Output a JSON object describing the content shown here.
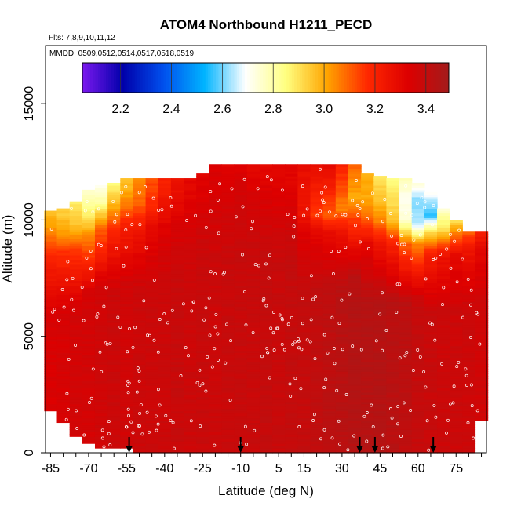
{
  "chart_data": {
    "type": "heatmap",
    "title": "ATOM4 Northbound H1211_PECD",
    "flights_label": "Flts: 7,8,9,10,11,12",
    "dates_label": "MMDD: 0509,0512,0514,0517,0518,0519",
    "xlabel": "Latitude (deg N)",
    "ylabel": "Altitude (m)",
    "xlim": [
      -87,
      87
    ],
    "ylim": [
      0,
      17500
    ],
    "x_ticks": [
      "-85",
      "-70",
      "-55",
      "-40",
      "-25",
      "-10",
      "5",
      "15",
      "30",
      "45",
      "60",
      "75"
    ],
    "x_tick_values": [
      -85,
      -70,
      -55,
      -40,
      -25,
      -10,
      5,
      15,
      30,
      45,
      60,
      75
    ],
    "y_ticks": [
      "0",
      "5000",
      "10000",
      "15000"
    ],
    "y_tick_values": [
      0,
      5000,
      10000,
      15000
    ],
    "colorbar": {
      "range": [
        2.05,
        3.49
      ],
      "tick_labels": [
        "2.2",
        "2.4",
        "2.6",
        "2.8",
        "3.0",
        "3.2",
        "3.4"
      ],
      "tick_values": [
        2.2,
        2.4,
        2.6,
        2.8,
        3.0,
        3.2,
        3.4
      ],
      "colors": [
        "#7b18ee",
        "#0000aa",
        "#0050ee",
        "#00b4ff",
        "#ffffff",
        "#ffff80",
        "#ffa500",
        "#ff2800",
        "#dd0000",
        "#a31b1b"
      ]
    },
    "arrow_latitudes": [
      -54,
      -10,
      37,
      43,
      66
    ],
    "profiles": [
      {
        "lat": -85,
        "top": 10400,
        "upper": [
          [
            10400,
            2.95
          ],
          [
            9500,
            3.05
          ],
          [
            8400,
            3.2
          ]
        ],
        "base": 3.34
      },
      {
        "lat": -80,
        "top": 10500,
        "upper": [
          [
            10500,
            2.92
          ],
          [
            9500,
            3.02
          ],
          [
            8500,
            3.18
          ]
        ],
        "base": 3.35
      },
      {
        "lat": -75,
        "top": 10800,
        "upper": [
          [
            10800,
            2.88
          ],
          [
            9800,
            2.96
          ],
          [
            8700,
            3.15
          ]
        ],
        "base": 3.36
      },
      {
        "lat": -70,
        "top": 11300,
        "upper": [
          [
            11300,
            2.75
          ],
          [
            10400,
            2.85
          ],
          [
            9300,
            3.05
          ]
        ],
        "base": 3.36
      },
      {
        "lat": -65,
        "top": 11500,
        "upper": [
          [
            11500,
            2.72
          ],
          [
            10800,
            2.8
          ],
          [
            9600,
            3.1
          ]
        ],
        "base": 3.37
      },
      {
        "lat": -60,
        "top": 11600,
        "upper": [
          [
            11600,
            2.85
          ],
          [
            10600,
            3.0
          ],
          [
            9400,
            3.2
          ]
        ],
        "base": 3.38
      },
      {
        "lat": -55,
        "top": 11800,
        "upper": [
          [
            11800,
            2.95
          ],
          [
            10800,
            3.05
          ],
          [
            9700,
            3.22
          ]
        ],
        "base": 3.37
      },
      {
        "lat": -50,
        "top": 11800,
        "upper": [
          [
            11800,
            3.05
          ],
          [
            10700,
            3.1
          ],
          [
            9600,
            3.25
          ]
        ],
        "base": 3.38
      },
      {
        "lat": -45,
        "top": 11800,
        "upper": [
          [
            11800,
            3.12
          ],
          [
            10600,
            3.18
          ],
          [
            9600,
            3.3
          ]
        ],
        "base": 3.38
      },
      {
        "lat": -40,
        "top": 11800,
        "upper": [
          [
            11800,
            3.2
          ],
          [
            10600,
            3.25
          ],
          [
            9600,
            3.33
          ]
        ],
        "base": 3.38
      },
      {
        "lat": -35,
        "top": 11800,
        "upper": [
          [
            11800,
            3.25
          ],
          [
            10600,
            3.3
          ],
          [
            9600,
            3.35
          ]
        ],
        "base": 3.39
      },
      {
        "lat": -30,
        "top": 11800,
        "upper": [
          [
            11800,
            3.3
          ],
          [
            10600,
            3.32
          ],
          [
            9600,
            3.36
          ]
        ],
        "base": 3.38
      },
      {
        "lat": -25,
        "top": 12000,
        "upper": [
          [
            12000,
            3.32
          ],
          [
            10800,
            3.34
          ]
        ],
        "base": 3.39
      },
      {
        "lat": -20,
        "top": 12400,
        "upper": [
          [
            12400,
            3.33
          ],
          [
            11000,
            3.35
          ]
        ],
        "base": 3.38
      },
      {
        "lat": -15,
        "top": 12400,
        "upper": [
          [
            12400,
            3.32
          ],
          [
            11000,
            3.35
          ]
        ],
        "base": 3.39
      },
      {
        "lat": -10,
        "top": 12400,
        "upper": [
          [
            12400,
            3.32
          ],
          [
            11000,
            3.36
          ]
        ],
        "base": 3.39
      },
      {
        "lat": -5,
        "top": 12400,
        "upper": [
          [
            12400,
            3.3
          ],
          [
            11000,
            3.35
          ]
        ],
        "base": 3.39
      },
      {
        "lat": 0,
        "top": 12400,
        "upper": [
          [
            12400,
            3.3
          ],
          [
            11000,
            3.34
          ]
        ],
        "base": 3.4
      },
      {
        "lat": 5,
        "top": 12400,
        "upper": [
          [
            12400,
            3.3
          ],
          [
            11000,
            3.33
          ]
        ],
        "base": 3.39
      },
      {
        "lat": 10,
        "top": 12400,
        "upper": [
          [
            12400,
            3.3
          ],
          [
            11000,
            3.33
          ]
        ],
        "base": 3.4
      },
      {
        "lat": 15,
        "top": 12400,
        "upper": [
          [
            12400,
            3.28
          ],
          [
            10300,
            3.25
          ],
          [
            9600,
            3.32
          ]
        ],
        "base": 3.4
      },
      {
        "lat": 20,
        "top": 12400,
        "upper": [
          [
            12400,
            3.28
          ],
          [
            10200,
            3.15
          ],
          [
            9600,
            3.3
          ]
        ],
        "base": 3.41
      },
      {
        "lat": 25,
        "top": 12400,
        "upper": [
          [
            12400,
            3.3
          ],
          [
            10200,
            3.1
          ],
          [
            9500,
            3.28
          ]
        ],
        "base": 3.42
      },
      {
        "lat": 30,
        "top": 12400,
        "upper": [
          [
            12400,
            3.2
          ],
          [
            10500,
            3.05
          ],
          [
            9600,
            3.25
          ]
        ],
        "base": 3.43
      },
      {
        "lat": 35,
        "top": 12400,
        "upper": [
          [
            12400,
            3.1
          ],
          [
            11000,
            3.0
          ],
          [
            10000,
            3.15
          ]
        ],
        "base": 3.44
      },
      {
        "lat": 40,
        "top": 12000,
        "upper": [
          [
            12000,
            3.0
          ],
          [
            11000,
            3.0
          ],
          [
            10000,
            3.1
          ],
          [
            9000,
            3.3
          ]
        ],
        "base": 3.44
      },
      {
        "lat": 45,
        "top": 11900,
        "upper": [
          [
            11900,
            2.9
          ],
          [
            11000,
            2.95
          ],
          [
            10000,
            3.05
          ],
          [
            9000,
            3.25
          ]
        ],
        "base": 3.44
      },
      {
        "lat": 50,
        "top": 11800,
        "upper": [
          [
            11800,
            2.85
          ],
          [
            11000,
            2.9
          ],
          [
            10000,
            2.95
          ],
          [
            9000,
            3.2
          ]
        ],
        "base": 3.43
      },
      {
        "lat": 55,
        "top": 11800,
        "upper": [
          [
            11800,
            2.8
          ],
          [
            11000,
            2.7
          ],
          [
            10000,
            2.75
          ],
          [
            9000,
            3.1
          ]
        ],
        "base": 3.42
      },
      {
        "lat": 60,
        "top": 11600,
        "upper": [
          [
            11600,
            2.75
          ],
          [
            10800,
            2.6
          ],
          [
            9800,
            2.65
          ],
          [
            9000,
            3.05
          ]
        ],
        "base": 3.4
      },
      {
        "lat": 65,
        "top": 11200,
        "upper": [
          [
            11200,
            2.7
          ],
          [
            10200,
            2.55
          ],
          [
            9500,
            2.9
          ],
          [
            8600,
            3.2
          ]
        ],
        "base": 3.39
      },
      {
        "lat": 70,
        "top": 10500,
        "upper": [
          [
            10500,
            2.75
          ],
          [
            9600,
            2.9
          ],
          [
            8600,
            3.25
          ]
        ],
        "base": 3.38
      },
      {
        "lat": 75,
        "top": 10000,
        "upper": [
          [
            10000,
            2.9
          ],
          [
            9300,
            3.1
          ],
          [
            8500,
            3.3
          ]
        ],
        "base": 3.38
      },
      {
        "lat": 80,
        "top": 9500,
        "upper": [
          [
            9500,
            3.1
          ],
          [
            8800,
            3.25
          ]
        ],
        "base": 3.38
      },
      {
        "lat": 85,
        "top": 9500,
        "upper": [
          [
            9500,
            3.2
          ],
          [
            8800,
            3.3
          ]
        ],
        "base": 3.37
      }
    ]
  }
}
